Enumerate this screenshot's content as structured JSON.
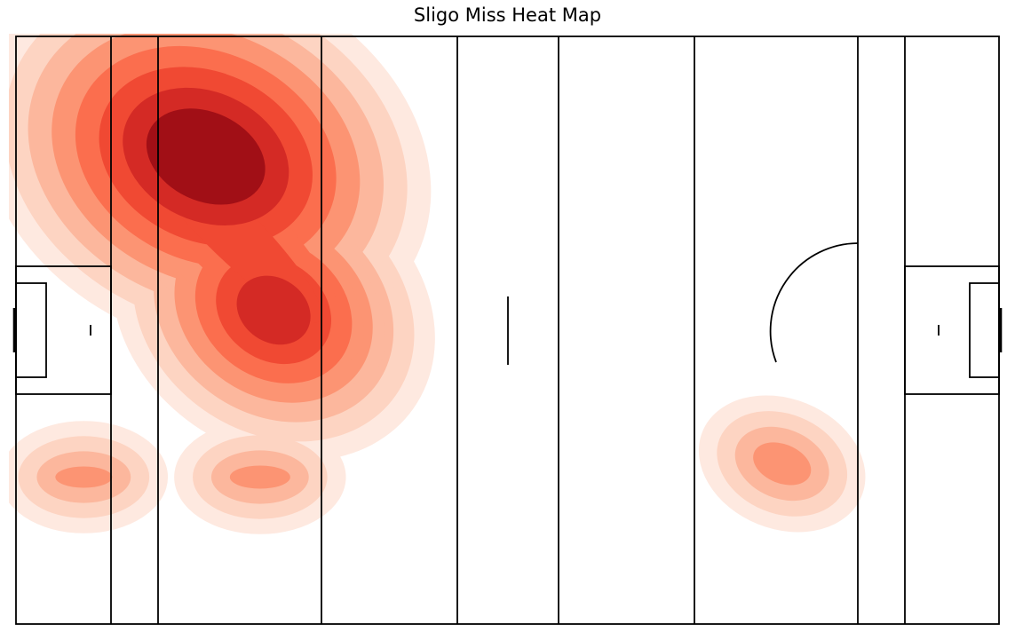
{
  "chart_data": {
    "type": "heatmap",
    "title": "Sligo Miss Heat Map",
    "xlabel": "",
    "ylabel": "",
    "xlim": [
      0,
      145
    ],
    "ylim": [
      0,
      88
    ],
    "grid": false,
    "colormap": "Reds",
    "contour_levels": 8,
    "kde_clusters": [
      {
        "x": 28,
        "y": 70,
        "weight": 1.0
      },
      {
        "x": 38,
        "y": 47,
        "weight": 0.85
      },
      {
        "x": 10,
        "y": 22,
        "weight": 0.55
      },
      {
        "x": 36,
        "y": 22,
        "weight": 0.5
      },
      {
        "x": 113,
        "y": 24,
        "weight": 0.55
      }
    ],
    "colors": {
      "levels": [
        "#fee9e0",
        "#fdd4c2",
        "#fcb79d",
        "#fc9473",
        "#fb6e4e",
        "#f04933",
        "#d42a25",
        "#a10f16"
      ],
      "lines": "#000000"
    }
  }
}
